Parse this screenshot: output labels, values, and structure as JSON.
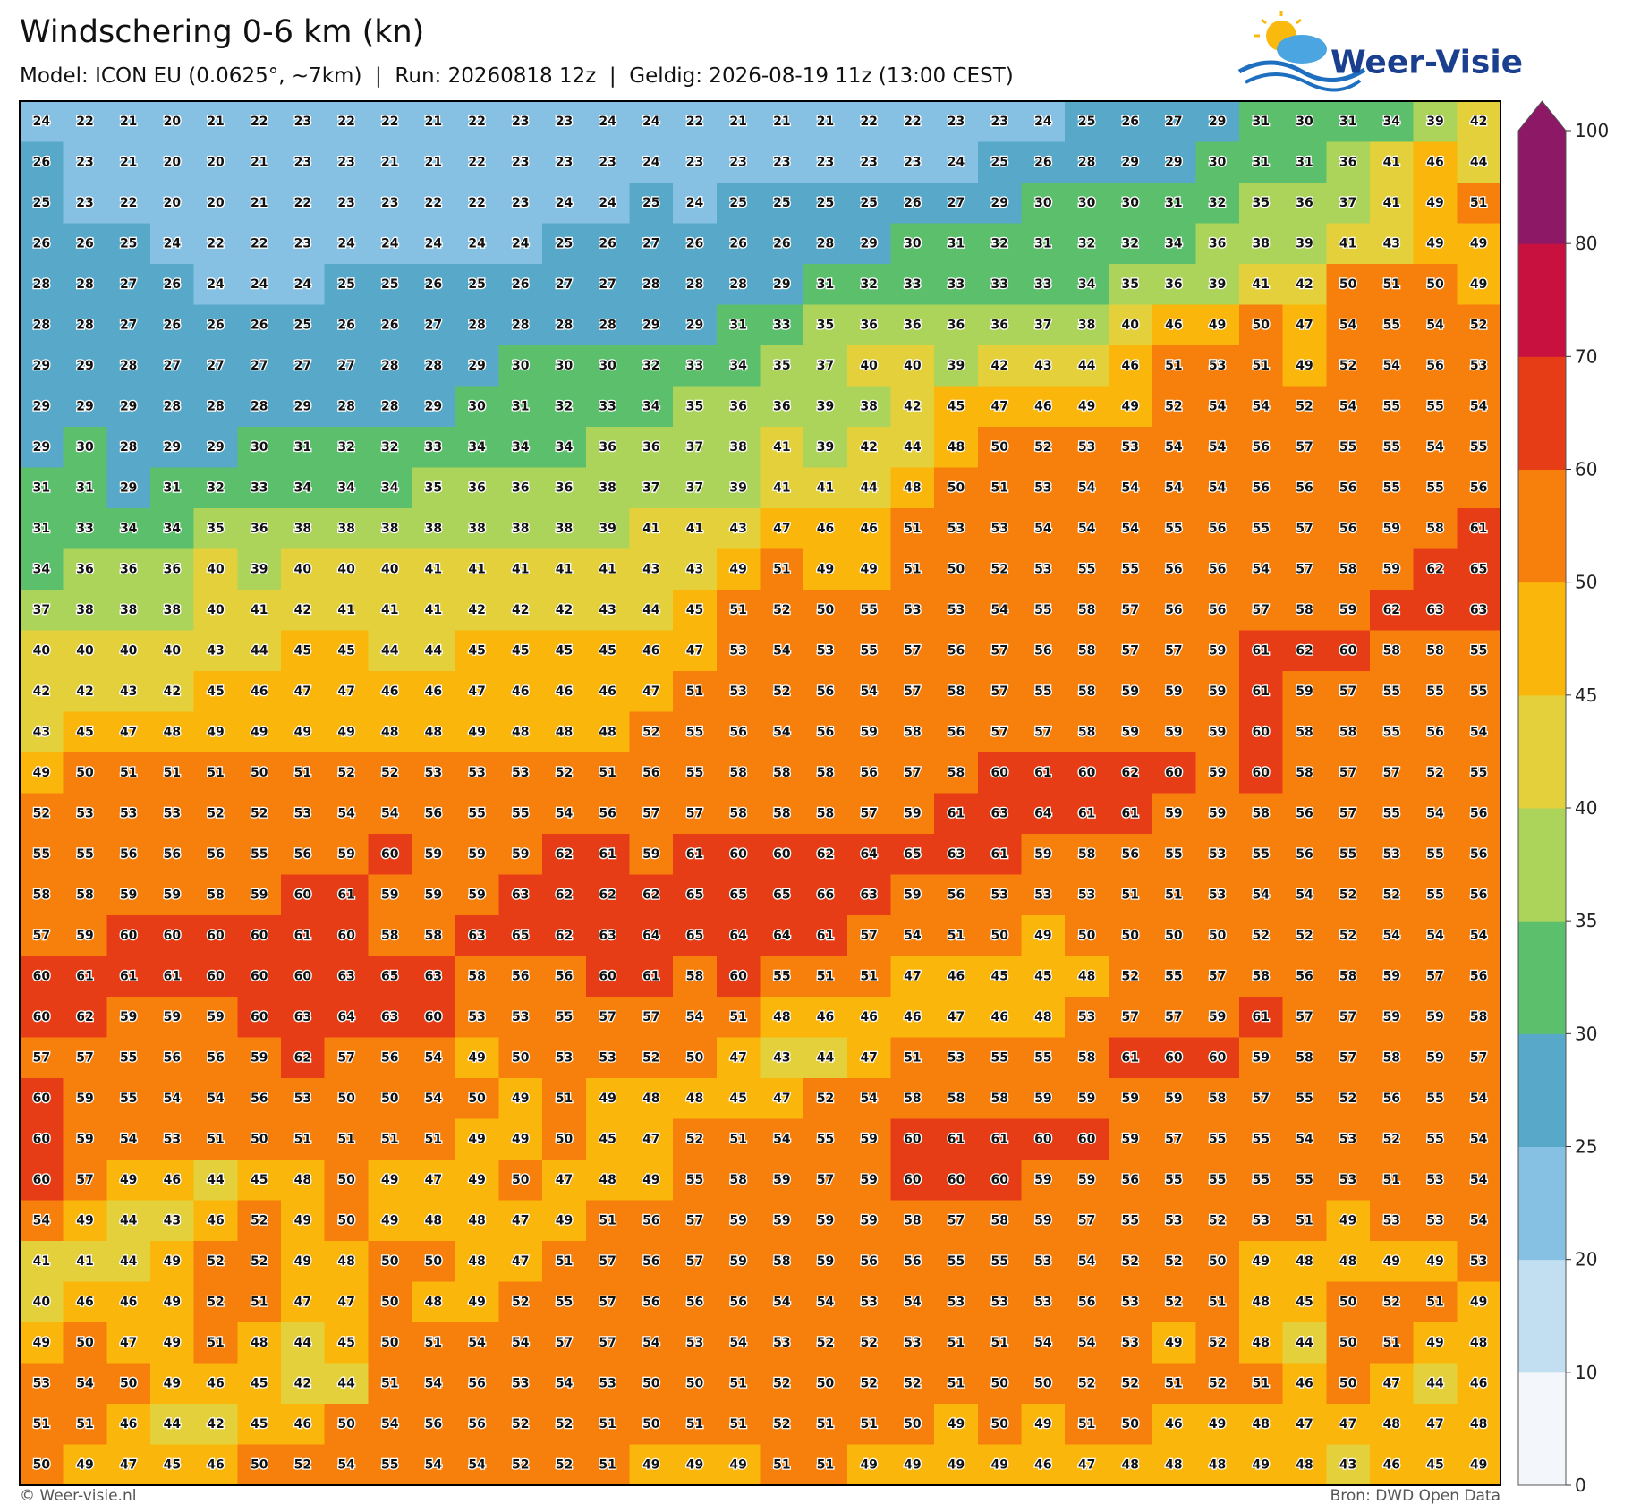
{
  "header": {
    "title": "Windschering 0-6 km (kn)",
    "subtitle": "Model: ICON EU (0.0625°, ~7km)  |  Run: 20260818 12z  |  Geldig: 2026-08-19 11z (13:00 CEST)"
  },
  "logo": "Weer-Visie",
  "map": {
    "rows": [
      [
        24,
        22,
        21,
        20,
        21,
        22,
        23,
        22,
        22,
        21,
        22,
        23,
        23,
        24,
        24,
        22,
        21,
        21,
        21,
        22,
        22,
        23,
        23,
        24,
        25,
        26,
        27,
        29,
        31,
        30,
        31,
        34,
        39,
        42
      ],
      [
        26,
        23,
        21,
        20,
        20,
        21,
        23,
        23,
        21,
        21,
        22,
        23,
        23,
        23,
        24,
        23,
        23,
        23,
        23,
        23,
        23,
        24,
        25,
        26,
        28,
        29,
        29,
        30,
        31,
        31,
        36,
        41,
        46,
        44
      ],
      [
        25,
        23,
        22,
        20,
        20,
        21,
        22,
        23,
        23,
        22,
        22,
        23,
        24,
        24,
        25,
        24,
        25,
        25,
        25,
        25,
        26,
        27,
        29,
        30,
        30,
        30,
        31,
        32,
        35,
        36,
        37,
        41,
        49,
        51
      ],
      [
        26,
        26,
        25,
        24,
        22,
        22,
        23,
        24,
        24,
        24,
        24,
        24,
        25,
        26,
        27,
        26,
        26,
        26,
        28,
        29,
        30,
        31,
        32,
        31,
        32,
        32,
        34,
        36,
        38,
        39,
        41,
        43,
        49,
        49
      ],
      [
        28,
        28,
        27,
        26,
        24,
        24,
        24,
        25,
        25,
        26,
        25,
        26,
        27,
        27,
        28,
        28,
        28,
        29,
        31,
        32,
        33,
        33,
        33,
        33,
        34,
        35,
        36,
        39,
        41,
        42,
        50,
        51,
        50,
        49
      ],
      [
        28,
        28,
        27,
        26,
        26,
        26,
        25,
        26,
        26,
        27,
        28,
        28,
        28,
        28,
        29,
        29,
        31,
        33,
        35,
        36,
        36,
        36,
        36,
        37,
        38,
        40,
        46,
        49,
        50,
        47,
        54,
        55,
        54,
        52
      ],
      [
        29,
        29,
        28,
        27,
        27,
        27,
        27,
        27,
        28,
        28,
        29,
        30,
        30,
        30,
        32,
        33,
        34,
        35,
        37,
        40,
        40,
        39,
        42,
        43,
        44,
        46,
        51,
        53,
        51,
        49,
        52,
        54,
        56,
        53
      ],
      [
        29,
        29,
        29,
        28,
        28,
        28,
        29,
        28,
        28,
        29,
        30,
        31,
        32,
        33,
        34,
        35,
        36,
        36,
        39,
        38,
        42,
        45,
        47,
        46,
        49,
        49,
        52,
        54,
        54,
        52,
        54,
        55,
        55,
        54
      ],
      [
        29,
        30,
        28,
        29,
        29,
        30,
        31,
        32,
        32,
        33,
        34,
        34,
        34,
        36,
        36,
        37,
        38,
        41,
        39,
        42,
        44,
        48,
        50,
        52,
        53,
        53,
        54,
        54,
        56,
        57,
        55,
        55,
        54,
        55
      ],
      [
        31,
        31,
        29,
        31,
        32,
        33,
        34,
        34,
        34,
        35,
        36,
        36,
        36,
        38,
        37,
        37,
        39,
        41,
        41,
        44,
        48,
        50,
        51,
        53,
        54,
        54,
        54,
        54,
        56,
        56,
        56,
        55,
        55,
        56
      ],
      [
        31,
        33,
        34,
        34,
        35,
        36,
        38,
        38,
        38,
        38,
        38,
        38,
        38,
        39,
        41,
        41,
        43,
        47,
        46,
        46,
        51,
        53,
        53,
        54,
        54,
        54,
        55,
        56,
        55,
        57,
        56,
        59,
        58,
        61
      ],
      [
        34,
        36,
        36,
        36,
        40,
        39,
        40,
        40,
        40,
        41,
        41,
        41,
        41,
        41,
        43,
        43,
        49,
        51,
        49,
        49,
        51,
        50,
        52,
        53,
        55,
        55,
        56,
        56,
        54,
        57,
        58,
        59,
        62,
        65
      ],
      [
        37,
        38,
        38,
        38,
        40,
        41,
        42,
        41,
        41,
        41,
        42,
        42,
        42,
        43,
        44,
        45,
        51,
        52,
        50,
        55,
        53,
        53,
        54,
        55,
        58,
        57,
        56,
        56,
        57,
        58,
        59,
        62,
        63,
        63
      ],
      [
        40,
        40,
        40,
        40,
        43,
        44,
        45,
        45,
        44,
        44,
        45,
        45,
        45,
        45,
        46,
        47,
        53,
        54,
        53,
        55,
        57,
        56,
        57,
        56,
        58,
        57,
        57,
        59,
        61,
        62,
        60,
        58,
        58,
        55
      ],
      [
        42,
        42,
        43,
        42,
        45,
        46,
        47,
        47,
        46,
        46,
        47,
        46,
        46,
        46,
        47,
        51,
        53,
        52,
        56,
        54,
        57,
        58,
        57,
        55,
        58,
        59,
        59,
        59,
        61,
        59,
        57,
        55,
        55,
        55
      ],
      [
        43,
        45,
        47,
        48,
        49,
        49,
        49,
        49,
        48,
        48,
        49,
        48,
        48,
        48,
        52,
        55,
        56,
        54,
        56,
        59,
        58,
        56,
        57,
        57,
        58,
        59,
        59,
        59,
        60,
        58,
        58,
        55,
        56,
        54
      ],
      [
        49,
        50,
        51,
        51,
        51,
        50,
        51,
        52,
        52,
        53,
        53,
        53,
        52,
        51,
        56,
        55,
        58,
        58,
        58,
        56,
        57,
        58,
        60,
        61,
        60,
        62,
        60,
        59,
        60,
        58,
        57,
        57,
        52,
        55
      ],
      [
        52,
        53,
        53,
        53,
        52,
        52,
        53,
        54,
        54,
        56,
        55,
        55,
        54,
        56,
        57,
        57,
        58,
        58,
        58,
        57,
        59,
        61,
        63,
        64,
        61,
        61,
        59,
        59,
        58,
        56,
        57,
        55,
        54,
        56
      ],
      [
        55,
        55,
        56,
        56,
        56,
        55,
        56,
        59,
        60,
        59,
        59,
        59,
        62,
        61,
        59,
        61,
        60,
        60,
        62,
        64,
        65,
        63,
        61,
        59,
        58,
        56,
        55,
        53,
        55,
        56,
        55,
        53,
        55,
        56
      ],
      [
        58,
        58,
        59,
        59,
        58,
        59,
        60,
        61,
        59,
        59,
        59,
        63,
        62,
        62,
        62,
        65,
        65,
        65,
        66,
        63,
        59,
        56,
        53,
        53,
        53,
        51,
        51,
        53,
        54,
        54,
        52,
        52,
        55,
        56
      ],
      [
        57,
        59,
        60,
        60,
        60,
        60,
        61,
        60,
        58,
        58,
        63,
        65,
        62,
        63,
        64,
        65,
        64,
        64,
        61,
        57,
        54,
        51,
        50,
        49,
        50,
        50,
        50,
        50,
        52,
        52,
        52,
        54,
        54,
        54
      ],
      [
        60,
        61,
        61,
        61,
        60,
        60,
        60,
        63,
        65,
        63,
        58,
        56,
        56,
        60,
        61,
        58,
        60,
        55,
        51,
        51,
        47,
        46,
        45,
        45,
        48,
        52,
        55,
        57,
        58,
        56,
        58,
        59,
        57,
        56
      ],
      [
        60,
        62,
        59,
        59,
        59,
        60,
        63,
        64,
        63,
        60,
        53,
        53,
        55,
        57,
        57,
        54,
        51,
        48,
        46,
        46,
        46,
        47,
        46,
        48,
        53,
        57,
        57,
        59,
        61,
        57,
        57,
        59,
        59,
        58
      ],
      [
        57,
        57,
        55,
        56,
        56,
        59,
        62,
        57,
        56,
        54,
        49,
        50,
        53,
        53,
        52,
        50,
        47,
        43,
        44,
        47,
        51,
        53,
        55,
        55,
        58,
        61,
        60,
        60,
        59,
        58,
        57,
        58,
        59,
        57
      ],
      [
        60,
        59,
        55,
        54,
        54,
        56,
        53,
        50,
        50,
        54,
        50,
        49,
        51,
        49,
        48,
        48,
        45,
        47,
        52,
        54,
        58,
        58,
        58,
        59,
        59,
        59,
        59,
        58,
        57,
        55,
        52,
        56,
        55,
        54
      ],
      [
        60,
        59,
        54,
        53,
        51,
        50,
        51,
        51,
        51,
        51,
        49,
        49,
        50,
        45,
        47,
        52,
        51,
        54,
        55,
        59,
        60,
        61,
        61,
        60,
        60,
        59,
        57,
        55,
        55,
        54,
        53,
        52,
        55,
        54
      ],
      [
        60,
        57,
        49,
        46,
        44,
        45,
        48,
        50,
        49,
        47,
        49,
        50,
        47,
        48,
        49,
        55,
        58,
        59,
        57,
        59,
        60,
        60,
        60,
        59,
        59,
        56,
        55,
        55,
        55,
        55,
        53,
        51,
        53,
        54
      ],
      [
        54,
        49,
        44,
        43,
        46,
        52,
        49,
        50,
        49,
        48,
        48,
        47,
        49,
        51,
        56,
        57,
        59,
        59,
        59,
        59,
        58,
        57,
        58,
        59,
        57,
        55,
        53,
        52,
        53,
        51,
        49,
        53,
        53,
        54
      ],
      [
        41,
        41,
        44,
        49,
        52,
        52,
        49,
        48,
        50,
        50,
        48,
        47,
        51,
        57,
        56,
        57,
        59,
        58,
        59,
        56,
        56,
        55,
        55,
        53,
        54,
        52,
        52,
        50,
        49,
        48,
        48,
        49,
        49,
        53
      ],
      [
        40,
        46,
        46,
        49,
        52,
        51,
        47,
        47,
        50,
        48,
        49,
        52,
        55,
        57,
        56,
        56,
        56,
        54,
        54,
        53,
        54,
        53,
        53,
        53,
        56,
        53,
        52,
        51,
        48,
        45,
        50,
        52,
        51,
        49
      ],
      [
        49,
        50,
        47,
        49,
        51,
        48,
        44,
        45,
        50,
        51,
        54,
        54,
        57,
        57,
        54,
        53,
        54,
        53,
        52,
        52,
        53,
        51,
        51,
        54,
        54,
        53,
        49,
        52,
        48,
        44,
        50,
        51,
        49,
        48
      ],
      [
        53,
        54,
        50,
        49,
        46,
        45,
        42,
        44,
        51,
        54,
        56,
        53,
        54,
        53,
        50,
        50,
        51,
        52,
        50,
        52,
        52,
        51,
        50,
        50,
        52,
        52,
        51,
        52,
        51,
        46,
        50,
        47,
        44,
        46
      ],
      [
        51,
        51,
        46,
        44,
        42,
        45,
        46,
        50,
        54,
        56,
        56,
        52,
        52,
        51,
        50,
        51,
        51,
        52,
        51,
        51,
        50,
        49,
        50,
        49,
        51,
        50,
        46,
        49,
        48,
        47,
        47,
        48,
        47,
        48
      ],
      [
        50,
        49,
        47,
        45,
        46,
        50,
        52,
        54,
        55,
        54,
        54,
        52,
        52,
        51,
        49,
        49,
        49,
        51,
        51,
        49,
        49,
        49,
        49,
        46,
        47,
        48,
        48,
        48,
        49,
        48,
        43,
        46,
        45,
        49
      ]
    ]
  },
  "colorbar": {
    "levels": [
      0,
      10,
      20,
      25,
      30,
      35,
      40,
      45,
      50,
      60,
      70,
      80,
      100
    ],
    "colors": [
      "#f3f7fb",
      "#c1dff0",
      "#86c1e4",
      "#58a9c9",
      "#5cbf6c",
      "#acd45a",
      "#e3d03a",
      "#fab60a",
      "#f77f0c",
      "#e73d17",
      "#c9113f",
      "#8c1866"
    ]
  },
  "footer": {
    "left": "© Weer-visie.nl",
    "right": "Bron: DWD Open Data"
  }
}
